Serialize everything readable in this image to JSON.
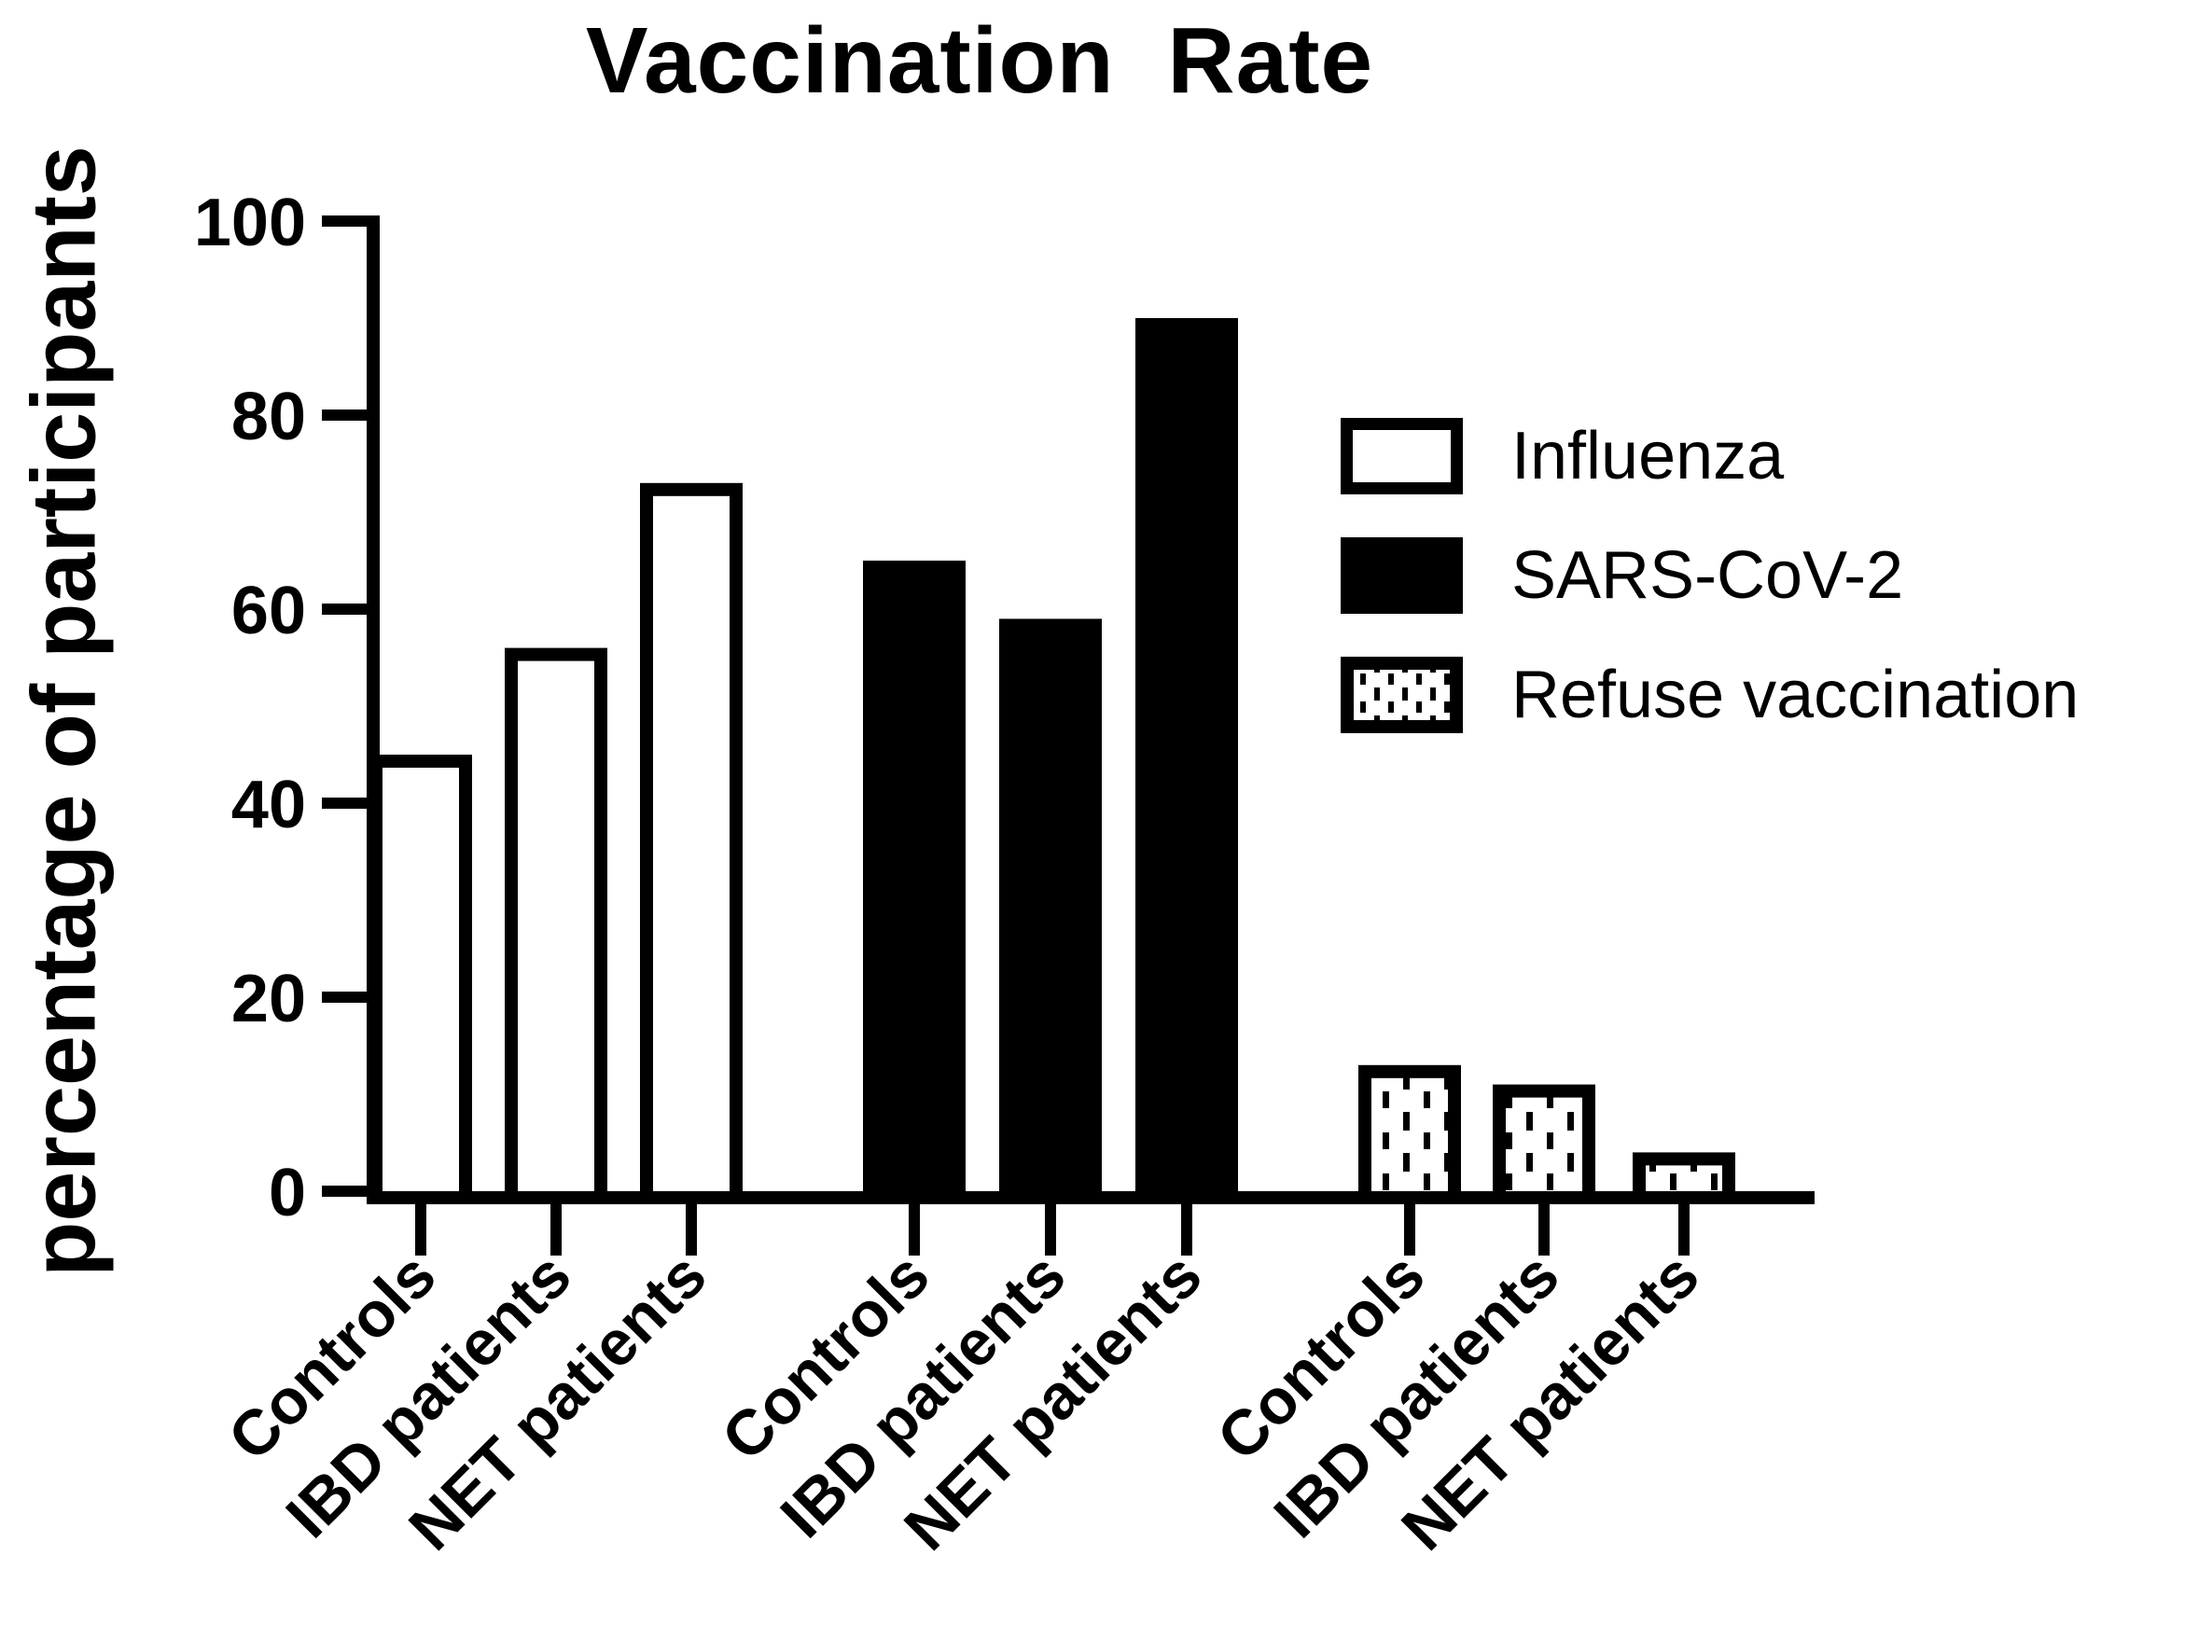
{
  "chart_data": {
    "type": "bar",
    "title": "Vaccination Rate",
    "ylabel": "percentage of participants",
    "xlabel": "",
    "ylim": [
      0,
      100
    ],
    "yticks": [
      0,
      20,
      40,
      60,
      80,
      100
    ],
    "grid": false,
    "legend_position": "right-inside",
    "categories": [
      "Controls",
      "IBD patients",
      "NET patients"
    ],
    "series": [
      {
        "name": "Influenza",
        "style": "open",
        "values": [
          45,
          56,
          73
        ]
      },
      {
        "name": "SARS-CoV-2",
        "style": "solid",
        "values": [
          65,
          59,
          90
        ]
      },
      {
        "name": "Refuse vaccination",
        "style": "dotted",
        "values": [
          13,
          11,
          4
        ]
      }
    ],
    "colors": {
      "foreground": "#000000",
      "background": "#ffffff",
      "open_bar_fill": "#ffffff",
      "solid_bar_fill": "#000000",
      "dotted_bar_fill": "#ffffff"
    }
  }
}
